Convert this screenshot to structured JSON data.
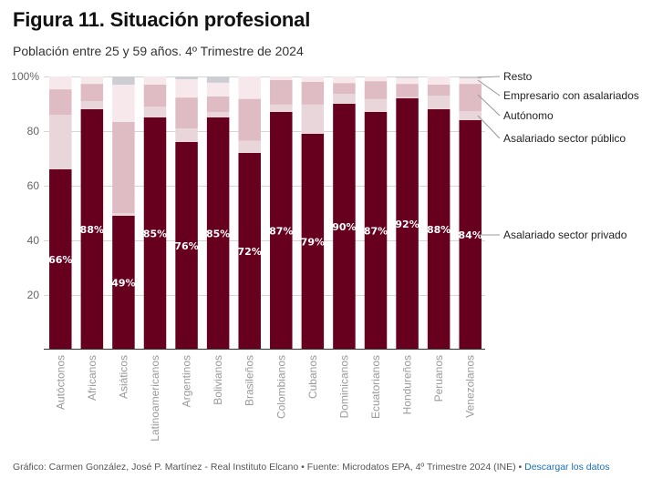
{
  "header": {
    "title": "Figura 11. Situación profesional",
    "subtitle": "Población entre 25 y 59 años. 4º Trimestre de 2024"
  },
  "footer": {
    "credit": "Gráfico: Carmen González, José P. Martínez - Real Instituto Elcano • Fuente: Microdatos EPA, 4º Trimestre 2024 (INE) • ",
    "download_link": "Descargar los datos"
  },
  "chart_data": {
    "type": "bar",
    "stacked": true,
    "title": "Figura 11. Situación profesional",
    "subtitle": "Población entre 25 y 59 años. 4º Trimestre de 2024",
    "xlabel": "",
    "ylabel": "",
    "ylim": [
      0,
      100
    ],
    "yticks": [
      20,
      40,
      60,
      80,
      100
    ],
    "ytick_labels": [
      "20",
      "40",
      "60",
      "80",
      "100%"
    ],
    "grid": true,
    "legend_placement": "right (direct labels)",
    "categories": [
      "Autóctonos",
      "Africanos",
      "Asiáticos",
      "Latinoamericanos",
      "Argentinos",
      "Bolivianos",
      "Brasileños",
      "Colombianos",
      "Cubanos",
      "Dominicanos",
      "Ecuatorianos",
      "Hondureños",
      "Peruanos",
      "Venezolanos"
    ],
    "series": [
      {
        "name": "Asalariado sector privado",
        "color": "#67001f",
        "values": [
          66,
          88,
          49,
          85,
          76,
          85,
          72,
          87,
          79,
          90,
          87,
          92,
          88,
          84
        ]
      },
      {
        "name": "Asalariado sector público",
        "color": "#e8d6da",
        "values": [
          20,
          3,
          1,
          4,
          5,
          2,
          4.5,
          2.7,
          10.7,
          3.6,
          4.7,
          0.5,
          5,
          3.3
        ]
      },
      {
        "name": "Autónomo",
        "color": "#dfbcc3",
        "values": [
          9.3,
          6.3,
          33.4,
          8,
          11.3,
          5.7,
          15.3,
          9,
          8.3,
          4,
          6.6,
          4.8,
          4,
          10
        ]
      },
      {
        "name": "Empresario con asalariados",
        "color": "#f7e9eb",
        "values": [
          4.7,
          2.7,
          13.6,
          3,
          6.7,
          5,
          8.2,
          1.3,
          2,
          2.4,
          1.7,
          2.2,
          3,
          2
        ]
      },
      {
        "name": "Resto",
        "color": "#cdced3",
        "values": [
          0,
          0,
          3,
          0,
          1,
          2.3,
          0,
          0,
          0,
          0,
          0,
          0.5,
          0,
          0.7
        ]
      }
    ],
    "data_labels": [
      "66%",
      "88%",
      "49%",
      "85%",
      "76%",
      "85%",
      "72%",
      "87%",
      "79%",
      "90%",
      "87%",
      "92%",
      "88%",
      "84%"
    ],
    "legend": [
      "Resto",
      "Empresario con asalariados",
      "Autónomo",
      "Asalariado sector público",
      "Asalariado sector privado"
    ]
  }
}
